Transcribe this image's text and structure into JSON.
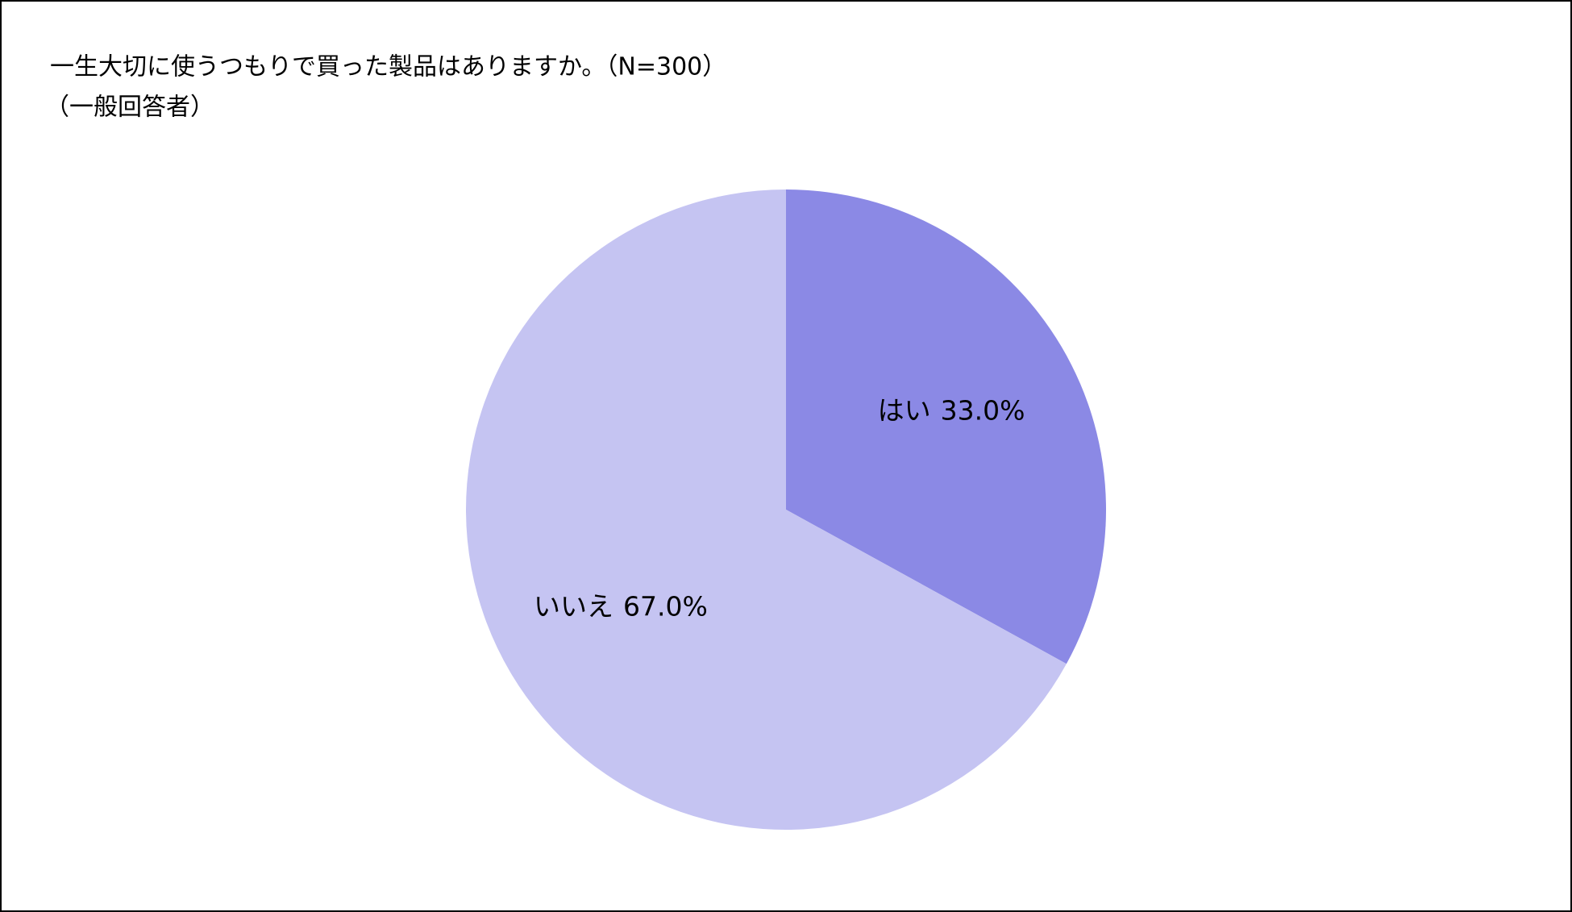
{
  "chart_data": {
    "type": "pie",
    "title": "一生大切に使うつもりで買った製品はありますか。（N=300）",
    "subtitle": "（一般回答者）",
    "categories": [
      "はい",
      "いいえ"
    ],
    "values": [
      33.0,
      67.0
    ],
    "value_labels": [
      "33.0%",
      "67.0%"
    ],
    "colors": [
      "#8b89e5",
      "#c5c4f2"
    ]
  }
}
